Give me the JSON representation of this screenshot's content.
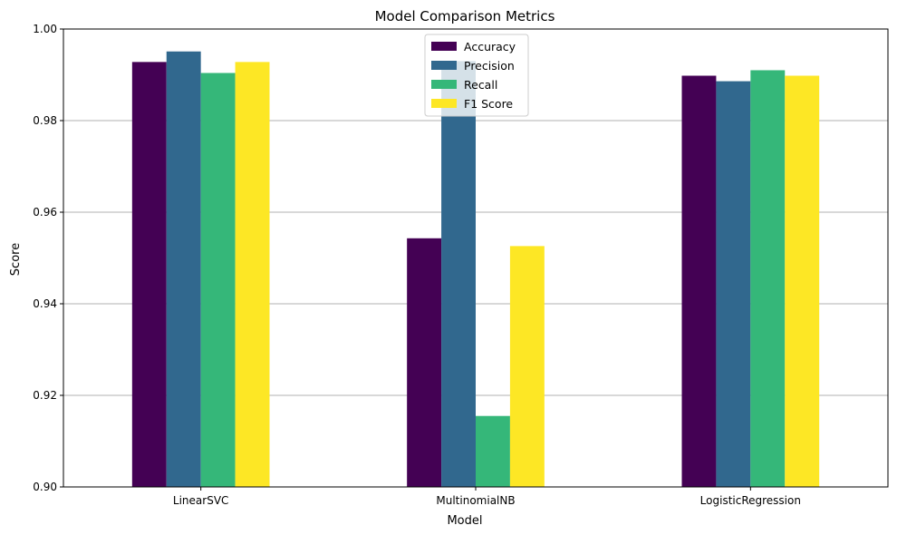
{
  "chart_data": {
    "type": "bar",
    "title": "Model Comparison Metrics",
    "xlabel": "Model",
    "ylabel": "Score",
    "categories": [
      "LinearSVC",
      "MultinomialNB",
      "LogisticRegression"
    ],
    "series": [
      {
        "name": "Accuracy",
        "color": "#440154",
        "values": [
          0.9928,
          0.9543,
          0.9898
        ]
      },
      {
        "name": "Precision",
        "color": "#31688e",
        "values": [
          0.9951,
          0.993,
          0.9886
        ]
      },
      {
        "name": "Recall",
        "color": "#35b779",
        "values": [
          0.9904,
          0.9155,
          0.991
        ]
      },
      {
        "name": "F1 Score",
        "color": "#fde725",
        "values": [
          0.9928,
          0.9526,
          0.9898
        ]
      }
    ],
    "ylim": [
      0.9,
      1.0
    ],
    "yticks": [
      0.9,
      0.92,
      0.94,
      0.96,
      0.98,
      1.0
    ],
    "ytick_labels": [
      "0.90",
      "0.92",
      "0.94",
      "0.96",
      "0.98",
      "1.00"
    ],
    "grid": "y-axis",
    "legend_position": "top-center"
  }
}
